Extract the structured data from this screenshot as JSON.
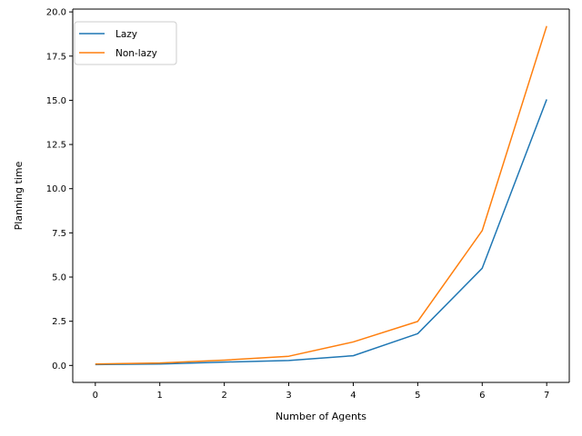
{
  "chart_data": {
    "type": "line",
    "title": "",
    "xlabel": "Number of Agents",
    "ylabel": "Planning time",
    "x": [
      0,
      1,
      2,
      3,
      4,
      5,
      6,
      7
    ],
    "xlim": [
      -0.35,
      7.35
    ],
    "ylim": [
      -0.96,
      20.16
    ],
    "xticks": [
      0,
      1,
      2,
      3,
      4,
      5,
      6,
      7
    ],
    "yticks": [
      0.0,
      2.5,
      5.0,
      7.5,
      10.0,
      12.5,
      15.0,
      17.5,
      20.0
    ],
    "ytick_labels": [
      "0.0",
      "2.5",
      "5.0",
      "7.5",
      "10.0",
      "12.5",
      "15.0",
      "17.5",
      "20.0"
    ],
    "grid": false,
    "legend_position": "top-left",
    "series": [
      {
        "name": "Lazy",
        "color": "#1f77b4",
        "values": [
          0.05,
          0.08,
          0.19,
          0.28,
          0.55,
          1.8,
          5.5,
          15.05
        ]
      },
      {
        "name": "Non-lazy",
        "color": "#ff7f0e",
        "values": [
          0.08,
          0.14,
          0.3,
          0.52,
          1.33,
          2.49,
          7.63,
          19.2
        ]
      }
    ]
  }
}
